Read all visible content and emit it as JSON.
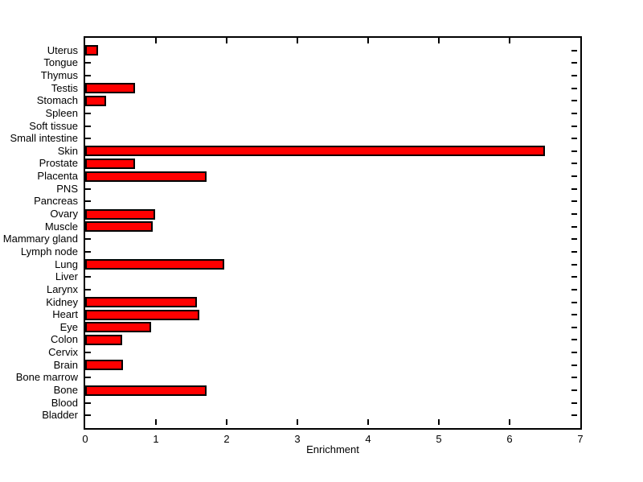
{
  "figure": {
    "background_color": "#ffffff",
    "axis_color": "#000000",
    "text_color": "#000000"
  },
  "chart_data": {
    "type": "bar",
    "orientation": "horizontal",
    "title": "",
    "xlabel": "Enrichment",
    "ylabel": "",
    "xlim": [
      0,
      7
    ],
    "x_ticks": [
      "0",
      "1",
      "2",
      "3",
      "4",
      "5",
      "6",
      "7"
    ],
    "grid": false,
    "legend": null,
    "bar_color": "#ff0000",
    "bar_edge_color": "#000000",
    "categories": [
      "Uterus",
      "Tongue",
      "Thymus",
      "Testis",
      "Stomach",
      "Spleen",
      "Soft tissue",
      "Small intestine",
      "Skin",
      "Prostate",
      "Placenta",
      "PNS",
      "Pancreas",
      "Ovary",
      "Muscle",
      "Mammary gland",
      "Lymph node",
      "Lung",
      "Liver",
      "Larynx",
      "Kidney",
      "Heart",
      "Eye",
      "Colon",
      "Cervix",
      "Brain",
      "Bone marrow",
      "Bone",
      "Blood",
      "Bladder"
    ],
    "values": [
      0.18,
      0,
      0,
      0.7,
      0.29,
      0,
      0,
      0,
      6.5,
      0.7,
      1.72,
      0,
      0,
      0.99,
      0.95,
      0,
      0,
      1.97,
      0,
      0,
      1.58,
      1.61,
      0.93,
      0.52,
      0,
      0.53,
      0,
      1.72,
      0,
      0
    ]
  }
}
